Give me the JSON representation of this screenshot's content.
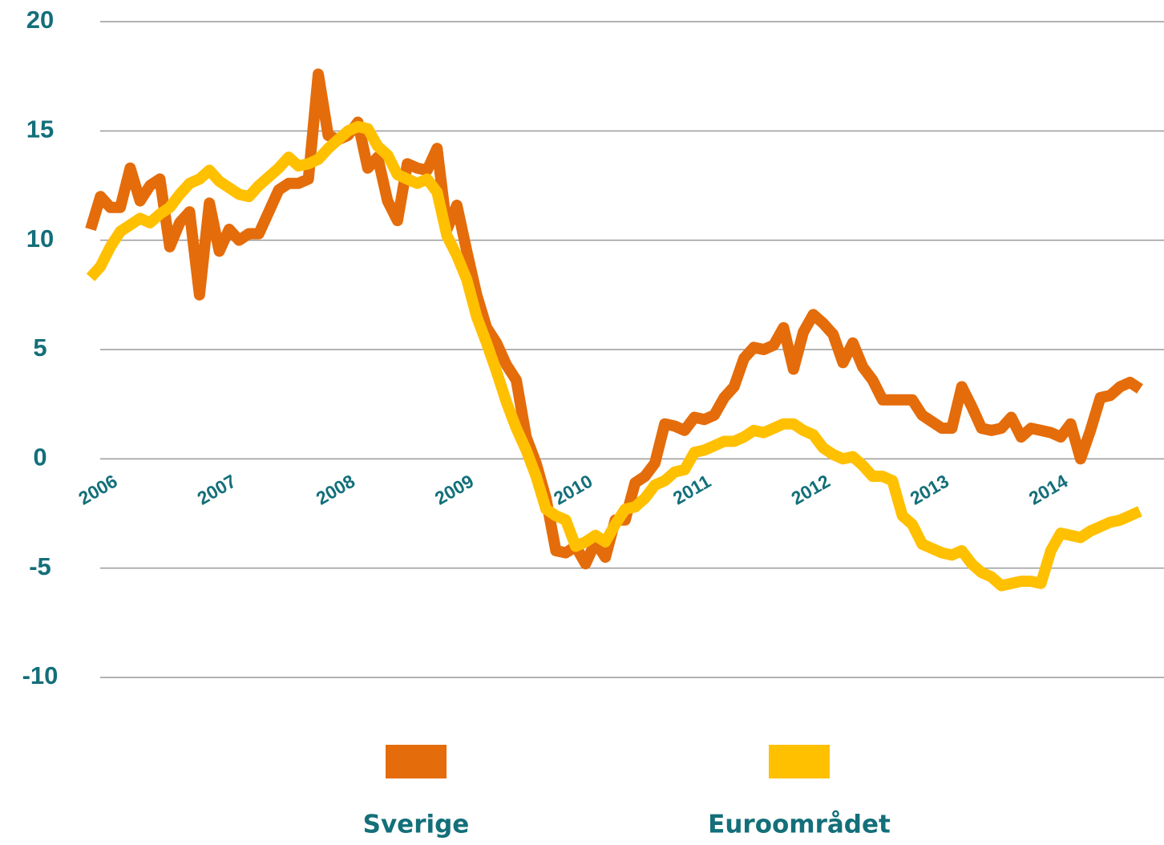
{
  "chart_data": {
    "type": "line",
    "categories": [
      "2006",
      null,
      null,
      null,
      null,
      null,
      null,
      null,
      null,
      null,
      null,
      null,
      "2007",
      null,
      null,
      null,
      null,
      null,
      null,
      null,
      null,
      null,
      null,
      null,
      "2008",
      null,
      null,
      null,
      null,
      null,
      null,
      null,
      null,
      null,
      null,
      null,
      "2009",
      null,
      null,
      null,
      null,
      null,
      null,
      null,
      null,
      null,
      null,
      null,
      "2010",
      null,
      null,
      null,
      null,
      null,
      null,
      null,
      null,
      null,
      null,
      null,
      "2011",
      null,
      null,
      null,
      null,
      null,
      null,
      null,
      null,
      null,
      null,
      null,
      "2012",
      null,
      null,
      null,
      null,
      null,
      null,
      null,
      null,
      null,
      null,
      null,
      "2013",
      null,
      null,
      null,
      null,
      null,
      null,
      null,
      null,
      null,
      null,
      null,
      "2014",
      null,
      null,
      null,
      null,
      null,
      null,
      null,
      null,
      null,
      null
    ],
    "series": [
      {
        "name": "Sverige",
        "color": "#e46c0a",
        "values": [
          10.5,
          12.0,
          11.5,
          11.5,
          13.3,
          11.8,
          12.5,
          12.8,
          9.7,
          10.8,
          11.3,
          7.5,
          11.7,
          9.5,
          10.5,
          10.0,
          10.3,
          10.3,
          11.3,
          12.3,
          12.6,
          12.6,
          12.8,
          17.6,
          14.8,
          14.6,
          14.8,
          15.4,
          13.3,
          13.8,
          11.8,
          10.9,
          13.5,
          13.3,
          13.2,
          14.2,
          10.5,
          11.6,
          9.5,
          7.5,
          6.0,
          5.3,
          4.3,
          3.6,
          1.0,
          -0.2,
          -1.8,
          -4.2,
          -4.3,
          -4.0,
          -4.8,
          -3.8,
          -4.5,
          -2.8,
          -2.8,
          -1.1,
          -0.8,
          -0.2,
          1.6,
          1.5,
          1.3,
          1.9,
          1.8,
          2.0,
          2.8,
          3.3,
          4.6,
          5.1,
          5.0,
          5.2,
          6.0,
          4.1,
          5.8,
          6.6,
          6.2,
          5.7,
          4.4,
          5.3,
          4.2,
          3.6,
          2.7,
          2.7,
          2.7,
          2.7,
          2.0,
          1.7,
          1.4,
          1.4,
          3.3,
          2.4,
          1.4,
          1.3,
          1.4,
          1.9,
          1.0,
          1.4,
          1.3,
          1.2,
          1.0,
          1.6,
          0.0,
          1.3,
          2.8,
          2.9,
          3.3,
          3.5,
          3.2
        ]
      },
      {
        "name": "Euroområdet",
        "color": "#ffc000",
        "values": [
          8.3,
          8.8,
          9.7,
          10.4,
          10.7,
          11.0,
          10.8,
          11.2,
          11.5,
          12.1,
          12.6,
          12.8,
          13.2,
          12.7,
          12.4,
          12.1,
          12.0,
          12.5,
          12.9,
          13.3,
          13.8,
          13.4,
          13.5,
          13.7,
          14.2,
          14.6,
          15.0,
          15.2,
          15.1,
          14.3,
          13.9,
          13.0,
          12.8,
          12.6,
          12.8,
          12.2,
          10.2,
          9.3,
          8.2,
          6.5,
          5.3,
          4.0,
          2.6,
          1.4,
          0.4,
          -0.8,
          -2.3,
          -2.6,
          -2.8,
          -4.0,
          -3.8,
          -3.5,
          -3.8,
          -3.0,
          -2.3,
          -2.2,
          -1.8,
          -1.2,
          -1.0,
          -0.6,
          -0.5,
          0.3,
          0.4,
          0.6,
          0.8,
          0.8,
          1.0,
          1.3,
          1.2,
          1.4,
          1.6,
          1.6,
          1.3,
          1.1,
          0.5,
          0.2,
          0.0,
          0.1,
          -0.3,
          -0.8,
          -0.8,
          -1.0,
          -2.6,
          -3.0,
          -3.9,
          -4.1,
          -4.3,
          -4.4,
          -4.2,
          -4.8,
          -5.2,
          -5.4,
          -5.8,
          -5.7,
          -5.6,
          -5.6,
          -5.7,
          -4.2,
          -3.4,
          -3.5,
          -3.6,
          -3.3,
          -3.1,
          -2.9,
          -2.8,
          -2.6,
          -2.4
        ]
      }
    ],
    "ylim": [
      -10,
      20
    ],
    "yticks": [
      -10,
      -5,
      0,
      5,
      10,
      15,
      20
    ],
    "grid": true
  }
}
